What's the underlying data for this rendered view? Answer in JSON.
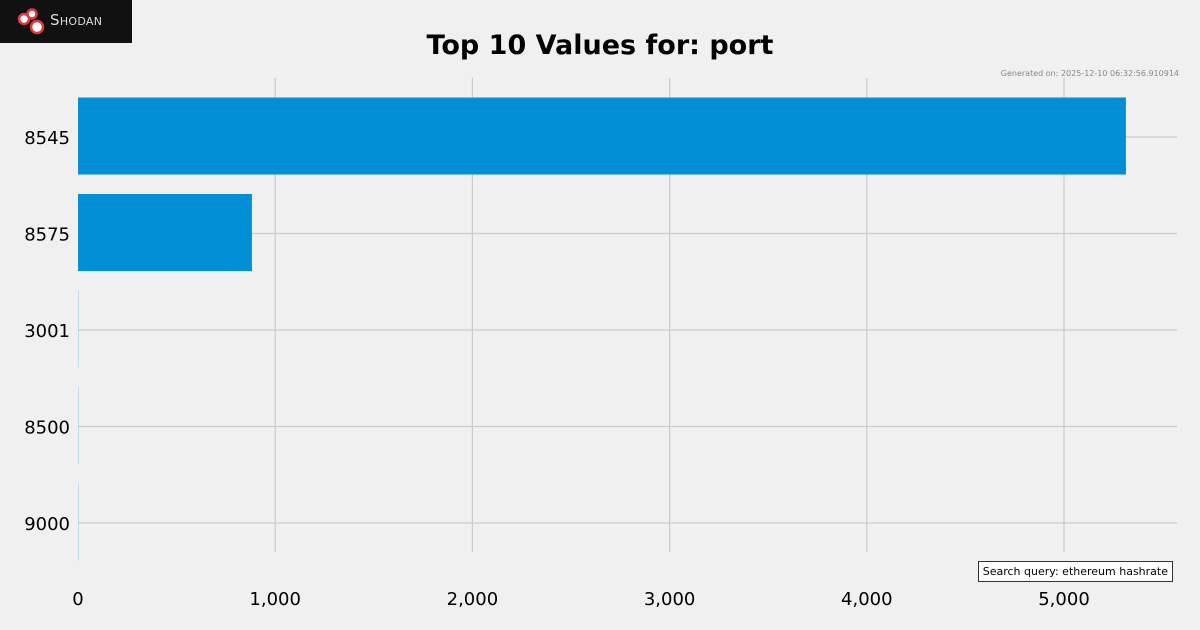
{
  "logo": {
    "text": "Shodan"
  },
  "generated": "Generated on: 2025-12-10 06:32:56.910914",
  "search_query": "Search query: ethereum hashrate",
  "colors": {
    "bar": "#028fd6",
    "grid": "#cbcbcb",
    "logo_red": "#e0383e"
  },
  "chart_data": {
    "type": "bar",
    "orientation": "horizontal",
    "title": "Top 10 Values for: port",
    "categories": [
      "8545",
      "8575",
      "3001",
      "8500",
      "9000"
    ],
    "values": [
      5314,
      882,
      1,
      1,
      1
    ],
    "xlim": [
      0,
      5573
    ],
    "xticks": [
      0,
      1000,
      2000,
      3000,
      4000,
      5000
    ],
    "xtick_labels": [
      "0",
      "1,000",
      "2,000",
      "3,000",
      "4,000",
      "5,000"
    ],
    "grid": true,
    "xlabel": "",
    "ylabel": ""
  }
}
